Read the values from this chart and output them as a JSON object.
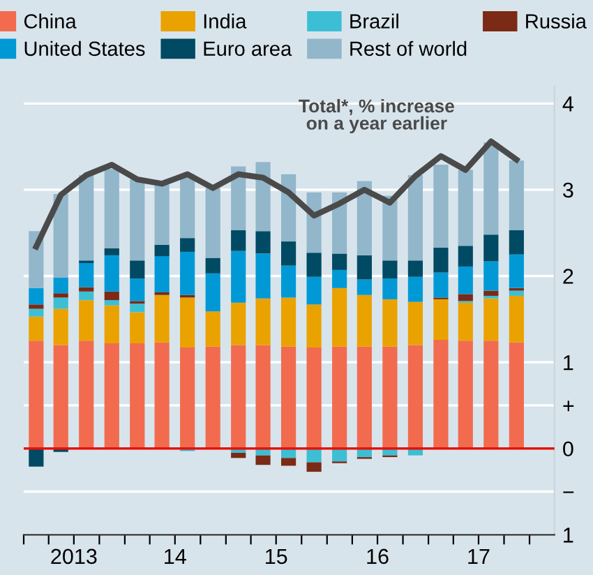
{
  "chart_data": {
    "type": "bar",
    "stacked": true,
    "x": [
      "2013-02-15",
      "2013-05-15",
      "2013-08-15",
      "2013-11-15",
      "2014-02-15",
      "2014-05-15",
      "2014-08-15",
      "2014-11-15",
      "2015-02-15",
      "2015-05-15",
      "2015-08-15",
      "2015-11-15",
      "2016-02-15",
      "2016-05-15",
      "2016-08-15",
      "2016-11-15",
      "2017-02-15",
      "2017-05-15",
      "2017-08-15",
      "2017-11-15"
    ],
    "series": [
      {
        "name": "China",
        "color": "#f26b4f",
        "values": [
          1.25,
          1.2,
          1.25,
          1.22,
          1.22,
          1.23,
          1.17,
          1.18,
          1.2,
          1.2,
          1.18,
          1.17,
          1.18,
          1.18,
          1.18,
          1.2,
          1.26,
          1.25,
          1.25,
          1.23
        ]
      },
      {
        "name": "India",
        "color": "#eaa200",
        "values": [
          0.28,
          0.42,
          0.47,
          0.44,
          0.36,
          0.55,
          0.58,
          0.41,
          0.49,
          0.54,
          0.57,
          0.5,
          0.68,
          0.6,
          0.55,
          0.5,
          0.47,
          0.44,
          0.49,
          0.54
        ]
      },
      {
        "name": "Brazil",
        "color": "#3cbfd4",
        "values": [
          0.09,
          0.13,
          0.1,
          0.06,
          0.1,
          null,
          -0.03,
          null,
          -0.05,
          -0.08,
          -0.11,
          -0.16,
          -0.15,
          -0.1,
          -0.08,
          -0.08,
          null,
          0.02,
          0.03,
          0.06
        ]
      },
      {
        "name": "Russia",
        "color": "#7b2a16",
        "values": [
          0.05,
          0.05,
          0.05,
          0.1,
          0.03,
          0.03,
          0.03,
          null,
          -0.06,
          -0.11,
          -0.09,
          -0.11,
          -0.02,
          -0.02,
          -0.02,
          null,
          0.02,
          0.08,
          0.06,
          0.03
        ]
      },
      {
        "name": "United States",
        "color": "#0099d6",
        "values": [
          0.19,
          0.18,
          0.28,
          0.42,
          0.26,
          0.42,
          0.5,
          0.44,
          0.6,
          0.52,
          0.37,
          0.32,
          0.21,
          0.18,
          0.24,
          0.29,
          0.29,
          0.32,
          0.34,
          0.39
        ]
      },
      {
        "name": "Euro area",
        "color": "#004a63",
        "values": [
          -0.21,
          -0.04,
          0.03,
          0.08,
          0.21,
          0.13,
          0.16,
          0.18,
          0.24,
          0.26,
          0.28,
          0.28,
          0.19,
          0.28,
          0.21,
          0.19,
          0.29,
          0.24,
          0.31,
          0.28
        ]
      },
      {
        "name": "Rest of world",
        "color": "#92b6ca",
        "values": [
          0.66,
          0.97,
          0.99,
          0.92,
          0.94,
          0.7,
          0.74,
          0.81,
          0.74,
          0.8,
          0.78,
          0.7,
          0.71,
          0.86,
          0.75,
          0.99,
          0.96,
          0.88,
          1.07,
          0.81
        ]
      },
      {
        "type": "line",
        "color": "#4a4a4a",
        "values": [
          2.34,
          2.94,
          3.17,
          3.29,
          3.12,
          3.07,
          3.18,
          3.02,
          3.18,
          3.14,
          2.97,
          2.7,
          2.84,
          3.0,
          2.85,
          3.16,
          3.39,
          3.23,
          3.56,
          3.35
        ]
      }
    ],
    "annotations": [
      "Total*, % increase\non a year earlier"
    ],
    "xlim": [
      "2013-01-01",
      "2018-04-01"
    ],
    "xticks": [
      {
        "value": "2013-01-01",
        "label": null
      },
      {
        "value": "2013-04-01",
        "label": null
      },
      {
        "value": "2013-07-01",
        "label": "2013"
      },
      {
        "value": "2013-10-01",
        "label": null
      },
      {
        "value": "2014-01-01",
        "label": null
      },
      {
        "value": "2014-04-01",
        "label": null
      },
      {
        "value": "2014-07-01",
        "label": "14"
      },
      {
        "value": "2014-10-01",
        "label": null
      },
      {
        "value": "2015-01-01",
        "label": null
      },
      {
        "value": "2015-04-01",
        "label": null
      },
      {
        "value": "2015-07-01",
        "label": "15"
      },
      {
        "value": "2015-10-01",
        "label": null
      },
      {
        "value": "2016-01-01",
        "label": null
      },
      {
        "value": "2016-04-01",
        "label": null
      },
      {
        "value": "2016-07-01",
        "label": "16"
      },
      {
        "value": "2016-10-01",
        "label": null
      },
      {
        "value": "2017-01-01",
        "label": null
      },
      {
        "value": "2017-04-01",
        "label": null
      },
      {
        "value": "2017-07-01",
        "label": "17"
      },
      {
        "value": "2017-10-01",
        "label": null
      },
      {
        "value": "2018-01-01",
        "label": null
      }
    ],
    "ylim": [
      -1,
      4.2
    ],
    "yticks": [
      {
        "value": -1,
        "label": "1"
      },
      {
        "value": -0.5,
        "label": "−"
      },
      0,
      {
        "value": 0.5,
        "label": "+"
      },
      1,
      2,
      3,
      4
    ],
    "ref_lines": [
      {
        "axis": "y",
        "value": 0,
        "color": "#e3120b"
      }
    ],
    "grid": "y",
    "legend": "top"
  }
}
